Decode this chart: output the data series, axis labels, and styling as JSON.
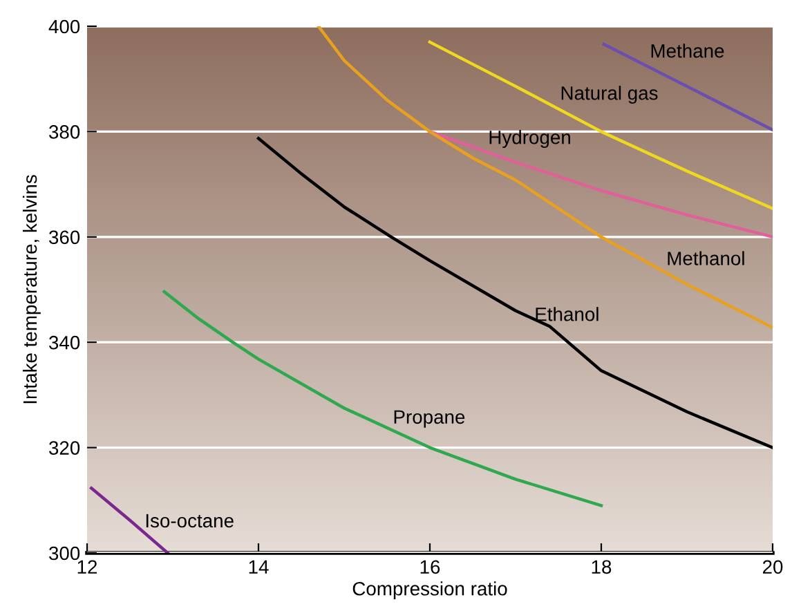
{
  "chart_data": {
    "type": "line",
    "xlabel": "Compression ratio",
    "ylabel": "Intake temperature, kelvins",
    "xlim": [
      12,
      20
    ],
    "ylim": [
      300,
      400
    ],
    "xticks": [
      12,
      14,
      16,
      18,
      20
    ],
    "yticks": [
      300,
      320,
      340,
      360,
      380,
      400
    ],
    "grid": "y",
    "marker": "none",
    "line_style": "solid",
    "series": [
      {
        "name": "Methane",
        "color": "#6a4fb0",
        "x": [
          18.03,
          19,
          20
        ],
        "values": [
          396.6,
          388.6,
          380.3
        ]
      },
      {
        "name": "Natural gas",
        "color": "#f0d820",
        "x": [
          16,
          17,
          18,
          19,
          20
        ],
        "values": [
          397,
          388.6,
          380,
          372.5,
          365.4
        ]
      },
      {
        "name": "Hydrogen",
        "color": "#e0609a",
        "x": [
          16,
          17,
          18,
          19,
          20
        ],
        "values": [
          380,
          374.2,
          368.8,
          364.2,
          360
        ]
      },
      {
        "name": "Methanol",
        "color": "#e8a020",
        "x": [
          14.7,
          15,
          15.5,
          16,
          16.5,
          17,
          18,
          19,
          20
        ],
        "values": [
          400,
          393.5,
          386,
          380,
          375,
          370.8,
          360,
          351,
          342.8
        ]
      },
      {
        "name": "Ethanol",
        "color": "#000000",
        "x": [
          14,
          14.5,
          15,
          15.55,
          16,
          17,
          17.4,
          18,
          19,
          20
        ],
        "values": [
          378.7,
          372,
          365.7,
          360,
          355.5,
          346,
          343,
          334.6,
          326.8,
          320
        ]
      },
      {
        "name": "Propane",
        "color": "#30a850",
        "x": [
          12.9,
          13.3,
          13.7,
          14,
          15,
          16,
          17,
          18
        ],
        "values": [
          349.6,
          344.5,
          340,
          336.8,
          327.5,
          320,
          314,
          309
        ]
      },
      {
        "name": "Iso-octane",
        "color": "#7a2890",
        "x": [
          12.05,
          12.5,
          12.94
        ],
        "values": [
          312.3,
          306.2,
          300
        ]
      }
    ]
  }
}
